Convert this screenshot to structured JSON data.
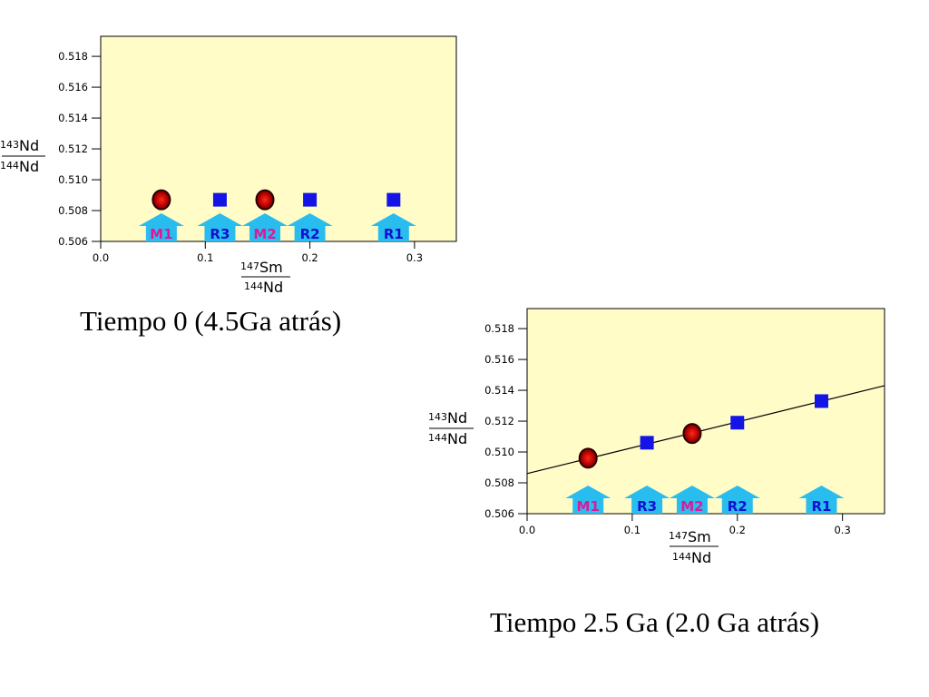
{
  "colors": {
    "plot_bg": "#FFFCC8",
    "square": "#1414E6",
    "circle_fill": "#B00000",
    "circle_edge": "#2A0000",
    "arrow": "#29BDEF",
    "label_m": "#E0179A",
    "label_r": "#1010D0",
    "line": "#000000"
  },
  "chart_data": [
    {
      "type": "scatter",
      "caption": "Tiempo 0 (4.5Ga atrás)",
      "ylabel": {
        "sup_top": "143",
        "base_top": "Nd",
        "sup_bottom": "144",
        "base_bottom": "Nd"
      },
      "xlabel": {
        "sup_top": "147",
        "base_top": "Sm",
        "sup_bottom": "144",
        "base_bottom": "Nd"
      },
      "xlim": [
        0.0,
        0.34
      ],
      "ylim": [
        0.506,
        0.5193
      ],
      "xticks": [
        "0.0",
        "0.1",
        "0.2",
        "0.3"
      ],
      "xtick_values": [
        0.0,
        0.1,
        0.2,
        0.3
      ],
      "yticks": [
        "0.518",
        "0.516",
        "0.514",
        "0.512",
        "0.510",
        "0.508",
        "0.506"
      ],
      "ytick_values": [
        0.518,
        0.516,
        0.514,
        0.512,
        0.51,
        0.508,
        0.506
      ],
      "points": [
        {
          "label": "M1",
          "kind": "mantle",
          "x": 0.058,
          "y": 0.5087
        },
        {
          "label": "R3",
          "kind": "rock",
          "x": 0.114,
          "y": 0.5087
        },
        {
          "label": "M2",
          "kind": "mantle",
          "x": 0.157,
          "y": 0.5087
        },
        {
          "label": "R2",
          "kind": "rock",
          "x": 0.2,
          "y": 0.5087
        },
        {
          "label": "R1",
          "kind": "rock",
          "x": 0.28,
          "y": 0.5087
        }
      ],
      "isochron": null
    },
    {
      "type": "scatter",
      "caption": "Tiempo 2.5 Ga (2.0 Ga atrás)",
      "ylabel": {
        "sup_top": "143",
        "base_top": "Nd",
        "sup_bottom": "144",
        "base_bottom": "Nd"
      },
      "xlabel": {
        "sup_top": "147",
        "base_top": "Sm",
        "sup_bottom": "144",
        "base_bottom": "Nd"
      },
      "xlim": [
        0.0,
        0.34
      ],
      "ylim": [
        0.506,
        0.5193
      ],
      "xticks": [
        "0.0",
        "0.1",
        "0.2",
        "0.3"
      ],
      "xtick_values": [
        0.0,
        0.1,
        0.2,
        0.3
      ],
      "yticks": [
        "0.518",
        "0.516",
        "0.514",
        "0.512",
        "0.510",
        "0.508",
        "0.506"
      ],
      "ytick_values": [
        0.518,
        0.516,
        0.514,
        0.512,
        0.51,
        0.508,
        0.506
      ],
      "points": [
        {
          "label": "M1",
          "kind": "mantle",
          "x": 0.058,
          "y": 0.5096
        },
        {
          "label": "R3",
          "kind": "rock",
          "x": 0.114,
          "y": 0.5106
        },
        {
          "label": "M2",
          "kind": "mantle",
          "x": 0.157,
          "y": 0.5112
        },
        {
          "label": "R2",
          "kind": "rock",
          "x": 0.2,
          "y": 0.5119
        },
        {
          "label": "R1",
          "kind": "rock",
          "x": 0.28,
          "y": 0.5133
        }
      ],
      "isochron": {
        "x0": 0.0,
        "y0": 0.5086,
        "x1": 0.34,
        "y1": 0.5143
      }
    }
  ]
}
